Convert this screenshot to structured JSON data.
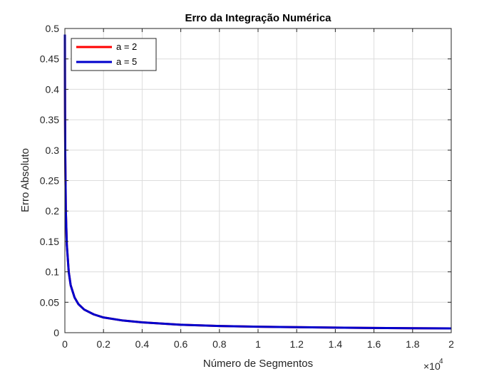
{
  "chart_data": {
    "type": "line",
    "title": "Erro da Integração Numérica",
    "xlabel": "Número de Segmentos",
    "ylabel": "Erro Absoluto",
    "x_exponent_base": "×10",
    "x_exponent_power": "4",
    "xlim": [
      0,
      20000
    ],
    "ylim": [
      0,
      0.5
    ],
    "xtick_values": [
      0,
      2000,
      4000,
      6000,
      8000,
      10000,
      12000,
      14000,
      16000,
      18000,
      20000
    ],
    "xtick_labels": [
      "0",
      "0.2",
      "0.4",
      "0.6",
      "0.8",
      "1",
      "1.2",
      "1.4",
      "1.6",
      "1.8",
      "2"
    ],
    "ytick_values": [
      0,
      0.05,
      0.1,
      0.15,
      0.2,
      0.25,
      0.3,
      0.35,
      0.4,
      0.45,
      0.5
    ],
    "ytick_labels": [
      "0",
      "0.05",
      "0.1",
      "0.15",
      "0.2",
      "0.25",
      "0.3",
      "0.35",
      "0.4",
      "0.45",
      "0.5"
    ],
    "grid": true,
    "legend_position": "top-left",
    "series": [
      {
        "name": "a = 2",
        "color": "#ff0000",
        "x": [
          1,
          5,
          10,
          20,
          50,
          100,
          200,
          300,
          500,
          700,
          1000,
          1500,
          2000,
          3000,
          4000,
          6000,
          8000,
          10000,
          12000,
          14000,
          16000,
          18000,
          20000
        ],
        "y": [
          0.49,
          0.42,
          0.36,
          0.29,
          0.2,
          0.145,
          0.1,
          0.078,
          0.058,
          0.047,
          0.038,
          0.03,
          0.025,
          0.02,
          0.017,
          0.013,
          0.011,
          0.0098,
          0.009,
          0.0083,
          0.0078,
          0.0073,
          0.007
        ]
      },
      {
        "name": "a = 5",
        "color": "#0000cc",
        "x": [
          1,
          5,
          10,
          20,
          50,
          100,
          200,
          300,
          500,
          700,
          1000,
          1500,
          2000,
          3000,
          4000,
          6000,
          8000,
          10000,
          12000,
          14000,
          16000,
          18000,
          20000
        ],
        "y": [
          0.49,
          0.42,
          0.36,
          0.29,
          0.2,
          0.145,
          0.1,
          0.078,
          0.058,
          0.047,
          0.038,
          0.03,
          0.025,
          0.02,
          0.017,
          0.013,
          0.011,
          0.0098,
          0.009,
          0.0083,
          0.0078,
          0.0073,
          0.007
        ]
      }
    ]
  }
}
